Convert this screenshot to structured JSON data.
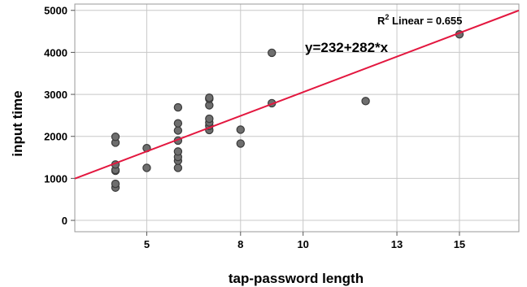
{
  "chart_data": {
    "type": "scatter",
    "xlabel": "tap-password length",
    "ylabel": "input time",
    "xlim": [
      2.7,
      16.9
    ],
    "ylim": [
      -270,
      5150
    ],
    "x_ticks": [
      5,
      8,
      10,
      13,
      15
    ],
    "y_ticks": [
      0,
      1000,
      2000,
      3000,
      4000,
      5000
    ],
    "grid": true,
    "points": [
      {
        "x": 4,
        "y": 780
      },
      {
        "x": 4,
        "y": 870
      },
      {
        "x": 4,
        "y": 1180
      },
      {
        "x": 4,
        "y": 1200
      },
      {
        "x": 4,
        "y": 1330
      },
      {
        "x": 4,
        "y": 1850
      },
      {
        "x": 4,
        "y": 1990
      },
      {
        "x": 5,
        "y": 1250
      },
      {
        "x": 5,
        "y": 1720
      },
      {
        "x": 6,
        "y": 1250
      },
      {
        "x": 6,
        "y": 1420
      },
      {
        "x": 6,
        "y": 1510
      },
      {
        "x": 6,
        "y": 1640
      },
      {
        "x": 6,
        "y": 1900
      },
      {
        "x": 6,
        "y": 2140
      },
      {
        "x": 6,
        "y": 2310
      },
      {
        "x": 6,
        "y": 2690
      },
      {
        "x": 7,
        "y": 2150
      },
      {
        "x": 7,
        "y": 2250
      },
      {
        "x": 7,
        "y": 2330
      },
      {
        "x": 7,
        "y": 2420
      },
      {
        "x": 7,
        "y": 2740
      },
      {
        "x": 7,
        "y": 2890
      },
      {
        "x": 7,
        "y": 2920
      },
      {
        "x": 8,
        "y": 1830
      },
      {
        "x": 8,
        "y": 2160
      },
      {
        "x": 9,
        "y": 2790
      },
      {
        "x": 9,
        "y": 3990
      },
      {
        "x": 12,
        "y": 2840
      },
      {
        "x": 15,
        "y": 4430
      }
    ],
    "fit_line": {
      "intercept": 232,
      "slope": 282,
      "color": "#e3173f"
    },
    "annotations": {
      "equation": "y=232+282*x",
      "r2_prefix": "R",
      "r2_sup": "2",
      "r2_text": " Linear = 0.655"
    },
    "colors": {
      "point_fill": "#6e6e6e",
      "point_stroke": "#3a3a3a",
      "grid": "#c8c8c8",
      "frame": "#9a9a9a"
    }
  }
}
